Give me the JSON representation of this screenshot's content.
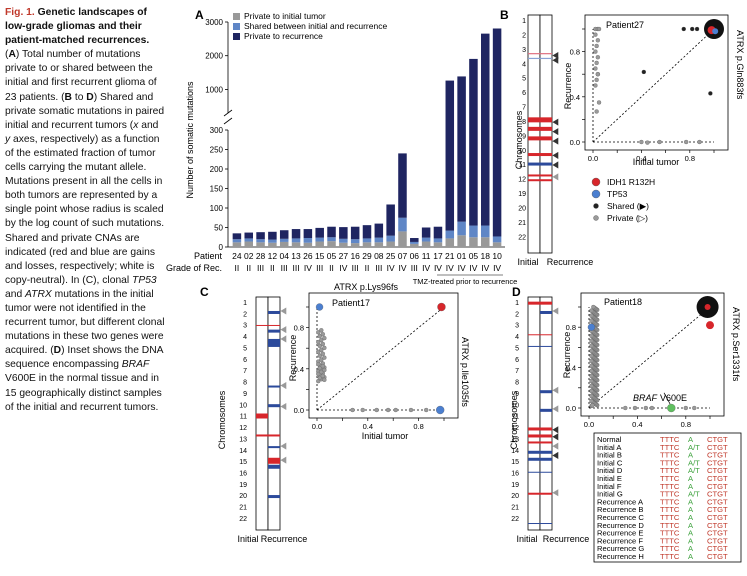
{
  "caption": {
    "label": "Fig. 1.",
    "title": "Genetic landscapes of low-grade gliomas and their patient-matched recurrences.",
    "parts": [
      {
        "t": " ("
      },
      {
        "t": "A",
        "b": 1
      },
      {
        "t": ") Total number of mutations private to or shared between the initial and first recurrent glioma of 23 patients. ("
      },
      {
        "t": "B",
        "b": 1
      },
      {
        "t": " to "
      },
      {
        "t": "D",
        "b": 1
      },
      {
        "t": ") Shared and private somatic mutations in paired initial and recurrent tumors ("
      },
      {
        "t": "x",
        "i": 1
      },
      {
        "t": " and "
      },
      {
        "t": "y",
        "i": 1
      },
      {
        "t": " axes, respectively) as a function of the estimated fraction of tumor cells carrying the mutant allele. Mutations present in all the cells in both tumors are represented by a single point whose radius is scaled by the log count of such mutations. Shared and private CNAs are indicated (red and blue are gains and losses, respectively; white is copy-neutral). In (C), clonal "
      },
      {
        "t": "TP53",
        "i": 1
      },
      {
        "t": " and "
      },
      {
        "t": "ATRX",
        "i": 1
      },
      {
        "t": " mutations in the initial tumor were not identified in the recurrent tumor, but different clonal mutations in these two genes were acquired. ("
      },
      {
        "t": "D",
        "b": 1
      },
      {
        "t": ") Inset shows the DNA sequence encompassing "
      },
      {
        "t": "BRAF",
        "i": 1
      },
      {
        "t": " V600E in the normal tissue and in 15 geographically distinct samples of the initial and recurrent tumors."
      }
    ]
  },
  "panel_labels": {
    "a": "A",
    "b": "B",
    "c": "C",
    "d": "D"
  },
  "panel_a": {
    "chart_data": {
      "type": "bar",
      "stacked": true,
      "ylabel": "Number of somatic mutations",
      "yticks_lower": [
        "0",
        "50",
        "100",
        "150",
        "200",
        "250",
        "300"
      ],
      "yticks_upper": [
        "1000",
        "2000",
        "3000"
      ],
      "axis_break": true,
      "legend": [
        {
          "name": "Private to initial tumor",
          "color": "#999999"
        },
        {
          "name": "Shared between initial and recurrence",
          "color": "#5f86c6"
        },
        {
          "name": "Private to recurrence",
          "color": "#1f2561"
        }
      ],
      "row_label_patient": "Patient",
      "row_label_grade": "Grade of Rec.",
      "categories": [
        "24",
        "02",
        "28",
        "12",
        "04",
        "13",
        "26",
        "15",
        "05",
        "27",
        "16",
        "29",
        "08",
        "25",
        "07",
        "06",
        "11",
        "17",
        "21",
        "01",
        "05",
        "18",
        "10"
      ],
      "grades": [
        "II",
        "II",
        "III",
        "II",
        "III",
        "III",
        "IV",
        "III",
        "II",
        "IV",
        "III",
        "II",
        "III",
        "IV",
        "IV",
        "III",
        "IV",
        "IV",
        "IV",
        "IV",
        "IV",
        "IV",
        "IV"
      ],
      "series": [
        {
          "name": "Private to initial tumor",
          "values": [
            12,
            14,
            12,
            11,
            13,
            12,
            11,
            14,
            15,
            11,
            10,
            12,
            12,
            14,
            40,
            8,
            14,
            12,
            22,
            30,
            25,
            25,
            12
          ]
        },
        {
          "name": "Shared between initial and recurrence",
          "values": [
            8,
            8,
            8,
            8,
            8,
            10,
            12,
            10,
            10,
            10,
            10,
            10,
            12,
            15,
            35,
            5,
            10,
            10,
            20,
            35,
            30,
            30,
            15
          ]
        },
        {
          "name": "Private to recurrence",
          "values": [
            15,
            15,
            18,
            20,
            22,
            24,
            23,
            25,
            27,
            30,
            32,
            34,
            36,
            80,
            165,
            10,
            26,
            30,
            1220,
            1320,
            1850,
            2600,
            2780
          ]
        }
      ],
      "tmz_label": "TMZ-treated prior to recurrence"
    }
  },
  "panel_b": {
    "ylabel": "Chromosomes",
    "xlabels": {
      "initial": "Initial",
      "recurrence": "Recurrence"
    },
    "chrom_labels": [
      "1",
      "2",
      "3",
      "4",
      "5",
      "6",
      "7",
      "8",
      "9",
      "10",
      "11",
      "12",
      "19",
      "20",
      "21",
      "22"
    ],
    "patient": "Patient27",
    "scatter": {
      "xlabel": "Initial tumor",
      "ylabel": "Recurrence",
      "ticks": [
        "0.0",
        "0.2",
        "0.4",
        "0.6",
        "0.8",
        "1.0"
      ]
    },
    "annotation": "ATRX p.Gln883fs"
  },
  "legend_b": {
    "items": [
      {
        "label": "IDH1 R132H",
        "color": "#d7262b"
      },
      {
        "label": "TP53",
        "color": "#4b7fd0"
      },
      {
        "label": "Shared (▶)",
        "color": "#222222"
      },
      {
        "label": "Private (▷)",
        "color": "#9a9a9a"
      }
    ]
  },
  "panel_c": {
    "ylabel": "Chromosomes",
    "xlabels": {
      "initial": "Initial",
      "recurrence": "Recurrence"
    },
    "chrom_labels": [
      "1",
      "2",
      "3",
      "4",
      "5",
      "6",
      "7",
      "8",
      "9",
      "10",
      "11",
      "12",
      "13",
      "14",
      "15",
      "16",
      "19",
      "20",
      "21",
      "22"
    ],
    "patient": "Patient17",
    "scatter": {
      "xlabel": "Initial tumor",
      "ylabel": "Recurrence",
      "ticks": [
        "0.0",
        "0.2",
        "0.4",
        "0.6",
        "0.8",
        "1.0"
      ]
    },
    "annotation_top": "ATRX p.Lys96fs",
    "annotation_right": "ATRX p.Ile1035fs"
  },
  "panel_d": {
    "ylabel": "Chromosomes",
    "xlabels": {
      "initial": "Initial",
      "recurrence": "Recurrence"
    },
    "chrom_labels": [
      "1",
      "2",
      "3",
      "4",
      "5",
      "6",
      "7",
      "8",
      "9",
      "10",
      "11",
      "12",
      "13",
      "14",
      "15",
      "16",
      "19",
      "20",
      "21",
      "22"
    ],
    "patient": "Patient18",
    "scatter": {
      "xlabel": "",
      "ylabel": "Recurrence",
      "ticks": [
        "0.0",
        "0.2",
        "0.4",
        "0.6",
        "0.8",
        "1.0"
      ]
    },
    "annotation_right": "ATRX p.Ser1331fs",
    "braf_label_gene": "BRAF",
    "braf_label_var": "V600E",
    "seq_table": [
      {
        "name": "Normal",
        "a": "TTTC",
        "b": "A",
        "c": "CTGT"
      },
      {
        "name": "Initial A",
        "a": "TTTC",
        "b": "A/T",
        "c": "CTGT"
      },
      {
        "name": "Initial B",
        "a": "TTTC",
        "b": "A",
        "c": "CTGT"
      },
      {
        "name": "Initial C",
        "a": "TTTC",
        "b": "A/T",
        "c": "CTGT"
      },
      {
        "name": "Initial D",
        "a": "TTTC",
        "b": "A/T",
        "c": "CTGT"
      },
      {
        "name": "Initial E",
        "a": "TTTC",
        "b": "A",
        "c": "CTGT"
      },
      {
        "name": "Initial F",
        "a": "TTTC",
        "b": "A",
        "c": "CTGT"
      },
      {
        "name": "Initial G",
        "a": "TTTC",
        "b": "A/T",
        "c": "CTGT"
      },
      {
        "name": "Recurrence A",
        "a": "TTTC",
        "b": "A",
        "c": "CTGT"
      },
      {
        "name": "Recurrence B",
        "a": "TTTC",
        "b": "A",
        "c": "CTGT"
      },
      {
        "name": "Recurrence C",
        "a": "TTTC",
        "b": "A",
        "c": "CTGT"
      },
      {
        "name": "Recurrence D",
        "a": "TTTC",
        "b": "A",
        "c": "CTGT"
      },
      {
        "name": "Recurrence E",
        "a": "TTTC",
        "b": "A",
        "c": "CTGT"
      },
      {
        "name": "Recurrence F",
        "a": "TTTC",
        "b": "A",
        "c": "CTGT"
      },
      {
        "name": "Recurrence G",
        "a": "TTTC",
        "b": "A",
        "c": "CTGT"
      },
      {
        "name": "Recurrence H",
        "a": "TTTC",
        "b": "A",
        "c": "CTGT"
      }
    ]
  },
  "colors": {
    "gain": "#d7262b",
    "loss": "#2c4a9b",
    "shared_dot": "#222222",
    "private_dot": "#9a9a9a",
    "seq_red": "#c0392b",
    "seq_green": "#3fa33f"
  }
}
